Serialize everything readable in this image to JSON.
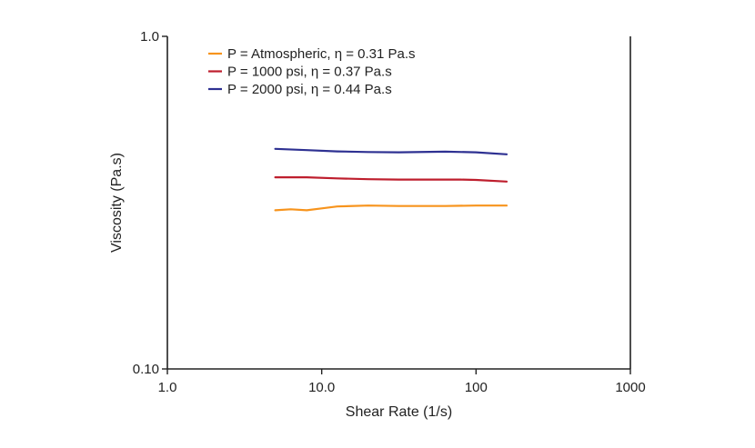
{
  "chart_data": {
    "type": "line",
    "title": "",
    "xlabel": "Shear Rate (1/s)",
    "ylabel": "Viscosity (Pa.s)",
    "x_scale": "log",
    "y_scale": "log",
    "xlim": [
      1,
      1000
    ],
    "ylim": [
      0.1,
      1.0
    ],
    "x_ticks": [
      {
        "value": 1,
        "label": "1.0"
      },
      {
        "value": 10,
        "label": "10.0"
      },
      {
        "value": 100,
        "label": "100"
      },
      {
        "value": 1000,
        "label": "1000"
      }
    ],
    "y_ticks": [
      {
        "value": 0.1,
        "label": "0.10"
      },
      {
        "value": 1.0,
        "label": "1.0"
      }
    ],
    "grid": false,
    "legend_position": "top-left",
    "series": [
      {
        "name": "P = Atmospheric, η = 0.31 Pa.s",
        "color": "#f7941d",
        "x": [
          5.0,
          6.3,
          8.0,
          10.0,
          12.6,
          20.0,
          31.6,
          50.1,
          63.1,
          100.0,
          158.0
        ],
        "y": [
          0.3,
          0.302,
          0.3,
          0.304,
          0.308,
          0.31,
          0.309,
          0.309,
          0.309,
          0.31,
          0.31
        ]
      },
      {
        "name": "P = 1000 psi, η = 0.37 Pa.s",
        "color": "#be1e2d",
        "x": [
          5.0,
          8.0,
          12.6,
          20.0,
          31.6,
          50.1,
          79.4,
          100.0,
          158.0
        ],
        "y": [
          0.377,
          0.377,
          0.374,
          0.372,
          0.371,
          0.371,
          0.371,
          0.37,
          0.366
        ]
      },
      {
        "name": "P = 2000 psi, η = 0.44 Pa.s",
        "color": "#2e3192",
        "x": [
          5.0,
          8.0,
          12.6,
          20.0,
          31.6,
          63.1,
          100.0,
          158.0
        ],
        "y": [
          0.459,
          0.455,
          0.451,
          0.449,
          0.448,
          0.45,
          0.448,
          0.442
        ]
      }
    ]
  }
}
